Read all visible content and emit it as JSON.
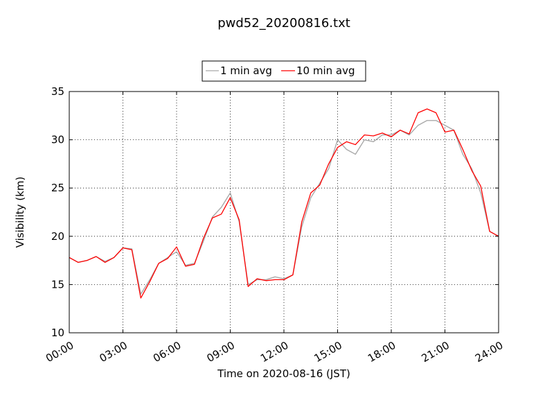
{
  "chart_data": {
    "type": "line",
    "title": "pwd52_20200816.txt",
    "xlabel": "Time on 2020-08-16 (JST)",
    "ylabel": "Visibility (km)",
    "xlim": [
      "00:00",
      "24:00"
    ],
    "ylim": [
      10,
      35
    ],
    "x_ticks": [
      "00:00",
      "03:00",
      "06:00",
      "09:00",
      "12:00",
      "15:00",
      "18:00",
      "21:00",
      "24:00"
    ],
    "y_ticks": [
      "10",
      "15",
      "20",
      "25",
      "30",
      "35"
    ],
    "grid": true,
    "legend_position": "top-center",
    "x": [
      "00:00",
      "00:30",
      "01:00",
      "01:30",
      "02:00",
      "02:30",
      "03:00",
      "03:30",
      "04:00",
      "04:30",
      "05:00",
      "05:30",
      "06:00",
      "06:30",
      "07:00",
      "07:30",
      "08:00",
      "08:30",
      "09:00",
      "09:30",
      "10:00",
      "10:30",
      "11:00",
      "11:30",
      "12:00",
      "12:30",
      "13:00",
      "13:30",
      "14:00",
      "14:30",
      "15:00",
      "15:30",
      "16:00",
      "16:30",
      "17:00",
      "17:30",
      "18:00",
      "18:30",
      "19:00",
      "19:30",
      "20:00",
      "20:30",
      "21:00",
      "21:30",
      "22:00",
      "22:30",
      "23:00",
      "23:30",
      "24:00"
    ],
    "series": [
      {
        "name": "1 min avg",
        "color": "#a9a9a9",
        "values": [
          17.8,
          17.3,
          17.5,
          17.9,
          17.4,
          17.8,
          18.8,
          18.7,
          14.0,
          15.5,
          17.2,
          17.8,
          18.4,
          17.0,
          17.2,
          19.5,
          22.0,
          23.0,
          24.5,
          21.5,
          15.0,
          15.5,
          15.5,
          15.8,
          15.6,
          16.0,
          21.0,
          24.0,
          25.5,
          27.0,
          30.0,
          29.0,
          28.5,
          30.0,
          29.8,
          30.5,
          30.5,
          31.0,
          30.5,
          31.5,
          32.0,
          32.0,
          31.5,
          31.0,
          28.5,
          27.0,
          24.5,
          20.5,
          20.0
        ]
      },
      {
        "name": "10 min avg",
        "color": "#ff0000",
        "values": [
          17.8,
          17.3,
          17.5,
          17.9,
          17.3,
          17.8,
          18.8,
          18.6,
          13.6,
          15.3,
          17.2,
          17.7,
          18.9,
          16.9,
          17.1,
          19.8,
          21.9,
          22.3,
          24.0,
          21.7,
          14.8,
          15.6,
          15.4,
          15.5,
          15.5,
          16.0,
          21.5,
          24.5,
          25.3,
          27.5,
          29.2,
          29.8,
          29.5,
          30.5,
          30.4,
          30.7,
          30.3,
          31.0,
          30.6,
          32.8,
          33.2,
          32.8,
          30.8,
          31.0,
          29.0,
          26.8,
          25.2,
          20.5,
          20.0
        ]
      }
    ]
  }
}
